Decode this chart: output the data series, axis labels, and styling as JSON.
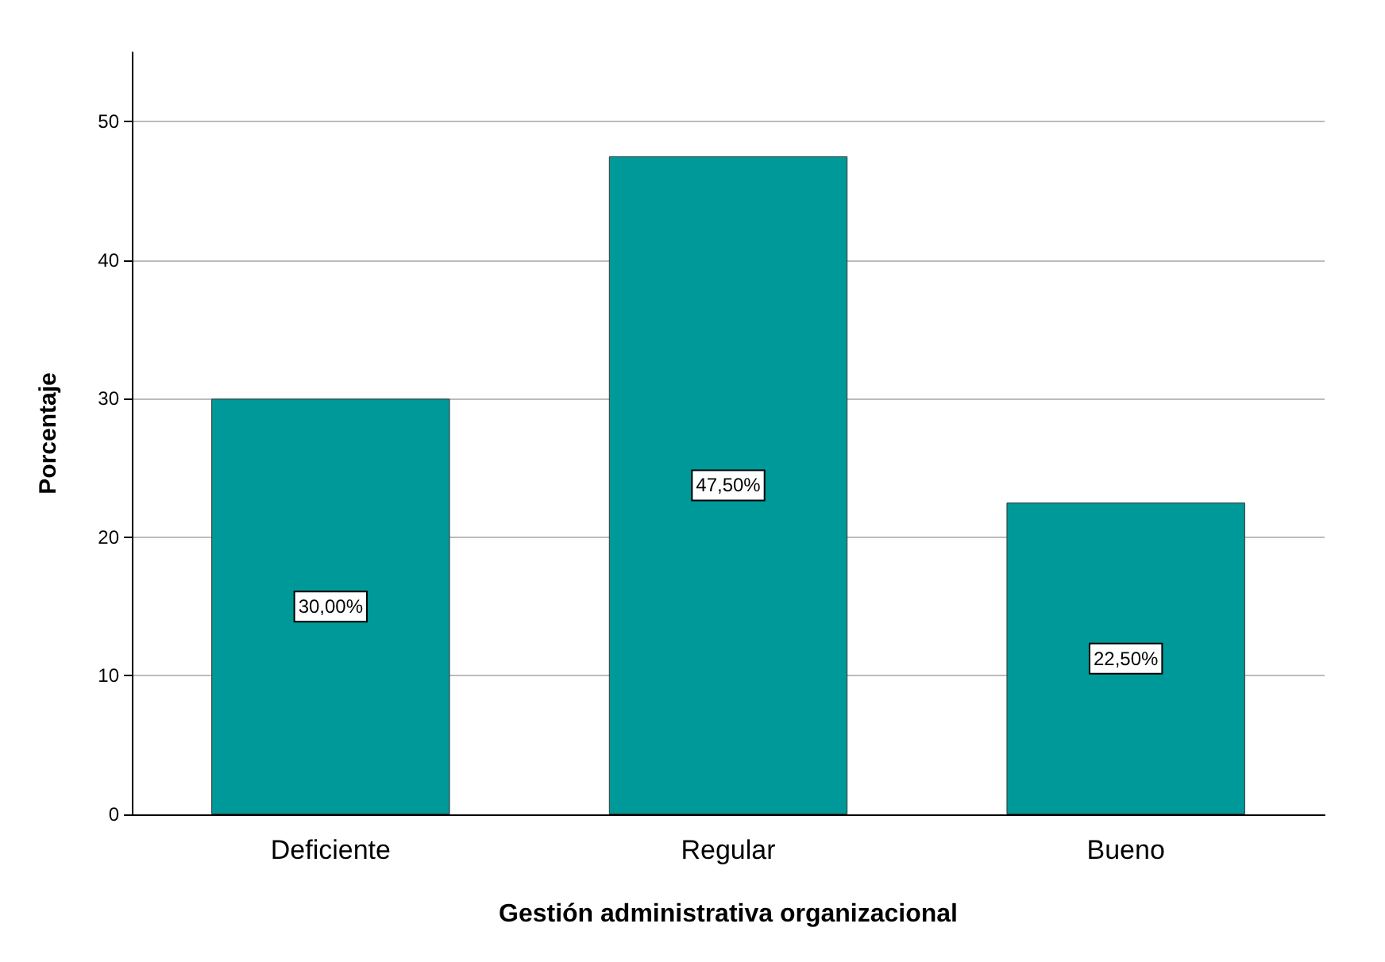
{
  "chart_data": {
    "type": "bar",
    "xlabel": "Gestión administrativa organizacional",
    "ylabel": "Porcentaje",
    "categories": [
      "Deficiente",
      "Regular",
      "Bueno"
    ],
    "values": [
      30,
      47.5,
      22.5
    ],
    "value_labels": [
      "30,00%",
      "47,50%",
      "22,50%"
    ],
    "color": "#009999",
    "ylim": [
      0,
      55
    ],
    "yticks": [
      0,
      10,
      20,
      30,
      40,
      50
    ],
    "grid": "y"
  }
}
